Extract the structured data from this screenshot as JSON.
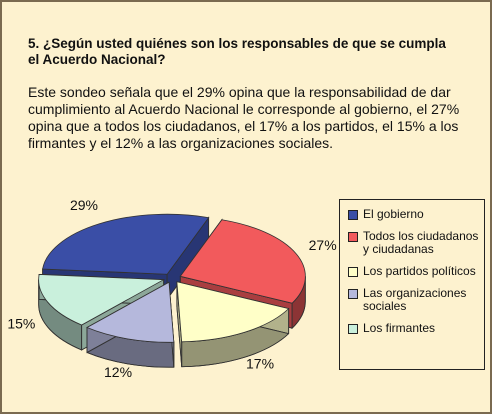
{
  "chart_data": {
    "type": "pie",
    "title": "5. ¿Según usted quiénes son los responsables de que se cumpla el Acuerdo Nacional?",
    "subtitle": "Este sondeo señala que el 29% opina que la responsabilidad de dar cumplimiento al Acuerdo Nacional le corresponde al gobierno, el 27% opina que a todos los ciudadanos, el 17% a los partidos, el 15% a los firmantes y el 12% a las organizaciones sociales.",
    "categories": [
      "El gobierno",
      "Todos los ciudadanos y ciudadanas",
      "Los partidos políticos",
      "Las organizaciones sociales",
      "Los firmantes"
    ],
    "values": [
      29,
      27,
      17,
      12,
      15
    ],
    "value_labels": [
      "29%",
      "27%",
      "17%",
      "12%",
      "15%"
    ],
    "colors": [
      "#3a4ea6",
      "#f25a5c",
      "#ffffc8",
      "#b5b8dc",
      "#c9f0dc"
    ],
    "legend": "right"
  }
}
